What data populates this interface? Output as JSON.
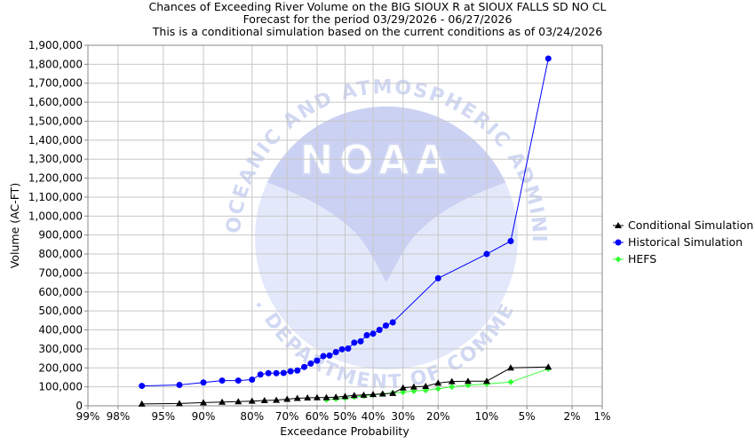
{
  "chart_data": {
    "type": "line",
    "title_lines": [
      "Chances of Exceeding River Volume on the BIG SIOUX R at SIOUX FALLS SD NO CL",
      "Forecast for the period 03/29/2026 - 06/27/2026",
      "This is a conditional simulation based on the current conditions as of 03/24/2026"
    ],
    "xlabel": "Exceedance Probability",
    "ylabel": "Volume (AC-FT)",
    "x_scale": "normal-probability",
    "x_reversed": true,
    "x_ticks": [
      0.99,
      0.98,
      0.95,
      0.9,
      0.8,
      0.7,
      0.6,
      0.5,
      0.4,
      0.3,
      0.2,
      0.1,
      0.05,
      0.02,
      0.01
    ],
    "x_tick_labels": [
      "99%",
      "98%",
      "95%",
      "90%",
      "80%",
      "70%",
      "60%",
      "50%",
      "40%",
      "30%",
      "20%",
      "10%",
      "5%",
      "2%",
      "1%"
    ],
    "ylim": [
      0,
      1900000
    ],
    "y_ticks": [
      0,
      100000,
      200000,
      300000,
      400000,
      500000,
      600000,
      700000,
      800000,
      900000,
      1000000,
      1100000,
      1200000,
      1300000,
      1400000,
      1500000,
      1600000,
      1700000,
      1800000,
      1900000
    ],
    "y_tick_labels": [
      "0",
      "100,000",
      "200,000",
      "300,000",
      "400,000",
      "500,000",
      "600,000",
      "700,000",
      "800,000",
      "900,000",
      "1,000,000",
      "1,100,000",
      "1,200,000",
      "1,300,000",
      "1,400,000",
      "1,500,000",
      "1,600,000",
      "1,700,000",
      "1,800,000",
      "1,900,000"
    ],
    "grid": true,
    "legend_position": "right",
    "series": [
      {
        "name": "Conditional Simulation",
        "color": "#000000",
        "marker": "triangle",
        "points": [
          [
            0.967,
            10000
          ],
          [
            0.933,
            12000
          ],
          [
            0.9,
            17000
          ],
          [
            0.867,
            20000
          ],
          [
            0.833,
            22000
          ],
          [
            0.8,
            25000
          ],
          [
            0.767,
            28000
          ],
          [
            0.733,
            30000
          ],
          [
            0.7,
            35000
          ],
          [
            0.667,
            40000
          ],
          [
            0.633,
            42000
          ],
          [
            0.6,
            43000
          ],
          [
            0.567,
            44000
          ],
          [
            0.533,
            46000
          ],
          [
            0.5,
            50000
          ],
          [
            0.467,
            55000
          ],
          [
            0.433,
            57000
          ],
          [
            0.4,
            60000
          ],
          [
            0.367,
            63000
          ],
          [
            0.333,
            66000
          ],
          [
            0.3,
            95000
          ],
          [
            0.267,
            100000
          ],
          [
            0.233,
            103000
          ],
          [
            0.2,
            120000
          ],
          [
            0.167,
            128000
          ],
          [
            0.133,
            130000
          ],
          [
            0.1,
            130000
          ],
          [
            0.067,
            200000
          ],
          [
            0.033,
            205000
          ]
        ]
      },
      {
        "name": "Historical Simulation",
        "color": "#0000ff",
        "marker": "circle",
        "points": [
          [
            0.967,
            105000
          ],
          [
            0.933,
            110000
          ],
          [
            0.9,
            123000
          ],
          [
            0.867,
            133000
          ],
          [
            0.833,
            133000
          ],
          [
            0.8,
            138000
          ],
          [
            0.778,
            165000
          ],
          [
            0.756,
            172000
          ],
          [
            0.733,
            172000
          ],
          [
            0.711,
            173000
          ],
          [
            0.689,
            182000
          ],
          [
            0.667,
            186000
          ],
          [
            0.644,
            205000
          ],
          [
            0.622,
            223000
          ],
          [
            0.6,
            238000
          ],
          [
            0.578,
            262000
          ],
          [
            0.556,
            265000
          ],
          [
            0.533,
            283000
          ],
          [
            0.511,
            298000
          ],
          [
            0.489,
            302000
          ],
          [
            0.467,
            333000
          ],
          [
            0.444,
            340000
          ],
          [
            0.422,
            372000
          ],
          [
            0.4,
            380000
          ],
          [
            0.378,
            400000
          ],
          [
            0.356,
            423000
          ],
          [
            0.333,
            440000
          ],
          [
            0.2,
            672000
          ],
          [
            0.1,
            800000
          ],
          [
            0.067,
            868000
          ],
          [
            0.033,
            1830000
          ]
        ]
      },
      {
        "name": "HEFS",
        "color": "#33ff33",
        "marker": "diamond",
        "points": [
          [
            0.567,
            32000
          ],
          [
            0.533,
            36000
          ],
          [
            0.5,
            41000
          ],
          [
            0.467,
            47000
          ],
          [
            0.433,
            52000
          ],
          [
            0.4,
            57000
          ],
          [
            0.367,
            62000
          ],
          [
            0.333,
            68000
          ],
          [
            0.3,
            72000
          ],
          [
            0.267,
            78000
          ],
          [
            0.233,
            82000
          ],
          [
            0.2,
            90000
          ],
          [
            0.167,
            100000
          ],
          [
            0.133,
            108000
          ],
          [
            0.1,
            115000
          ],
          [
            0.067,
            125000
          ],
          [
            0.033,
            195000
          ]
        ]
      }
    ]
  },
  "watermark": {
    "logo_text": "NOAA",
    "ring_text_top": "NATIONAL OCEANIC AND ATMOSPHERIC ADMINISTRATION",
    "ring_text_bottom": "U.S. DEPARTMENT OF COMMERCE"
  }
}
